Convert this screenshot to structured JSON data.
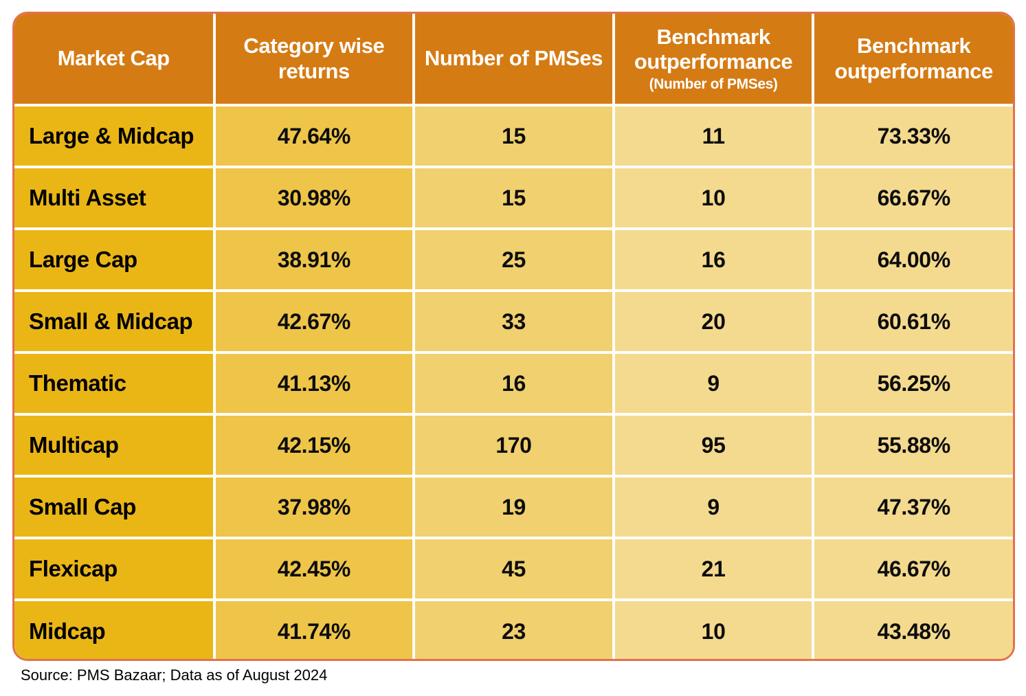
{
  "colors": {
    "header_bg": "#d57b14",
    "col1_bg": "#eab616",
    "col2_bg": "#eec549",
    "col3_bg": "#f0d06f",
    "col45_bg": "#f4da8e",
    "outer_border": "#e2714d",
    "grid_line": "#ffffff",
    "header_text": "#ffffff",
    "cell_text": "#0d0d0d"
  },
  "table": {
    "headers": [
      {
        "label": "Market Cap",
        "sub": ""
      },
      {
        "label": "Category wise returns",
        "sub": ""
      },
      {
        "label": "Number of PMSes",
        "sub": ""
      },
      {
        "label": "Benchmark outperformance",
        "sub": "(Number of PMSes)"
      },
      {
        "label": "Benchmark outperformance",
        "sub": ""
      }
    ],
    "rows": [
      {
        "market_cap": "Large & Midcap",
        "category_returns": "47.64%",
        "num_pmses": "15",
        "outperf_count": "11",
        "outperf_pct": "73.33%"
      },
      {
        "market_cap": "Multi Asset",
        "category_returns": "30.98%",
        "num_pmses": "15",
        "outperf_count": "10",
        "outperf_pct": "66.67%"
      },
      {
        "market_cap": "Large Cap",
        "category_returns": "38.91%",
        "num_pmses": "25",
        "outperf_count": "16",
        "outperf_pct": "64.00%"
      },
      {
        "market_cap": "Small & Midcap",
        "category_returns": "42.67%",
        "num_pmses": "33",
        "outperf_count": "20",
        "outperf_pct": "60.61%"
      },
      {
        "market_cap": "Thematic",
        "category_returns": "41.13%",
        "num_pmses": "16",
        "outperf_count": "9",
        "outperf_pct": "56.25%"
      },
      {
        "market_cap": "Multicap",
        "category_returns": "42.15%",
        "num_pmses": "170",
        "outperf_count": "95",
        "outperf_pct": "55.88%"
      },
      {
        "market_cap": "Small Cap",
        "category_returns": "37.98%",
        "num_pmses": "19",
        "outperf_count": "9",
        "outperf_pct": "47.37%"
      },
      {
        "market_cap": "Flexicap",
        "category_returns": "42.45%",
        "num_pmses": "45",
        "outperf_count": "21",
        "outperf_pct": "46.67%"
      },
      {
        "market_cap": "Midcap",
        "category_returns": "41.74%",
        "num_pmses": "23",
        "outperf_count": "10",
        "outperf_pct": "43.48%"
      }
    ]
  },
  "footer": {
    "source": "Source: PMS Bazaar; Data as of August 2024"
  },
  "chart_data": {
    "type": "table",
    "title": "",
    "columns": [
      "Market Cap",
      "Category wise returns",
      "Number of PMSes",
      "Benchmark outperformance (Number of PMSes)",
      "Benchmark outperformance"
    ],
    "rows": [
      [
        "Large & Midcap",
        "47.64%",
        15,
        11,
        "73.33%"
      ],
      [
        "Multi Asset",
        "30.98%",
        15,
        10,
        "66.67%"
      ],
      [
        "Large Cap",
        "38.91%",
        25,
        16,
        "64.00%"
      ],
      [
        "Small & Midcap",
        "42.67%",
        33,
        20,
        "60.61%"
      ],
      [
        "Thematic",
        "41.13%",
        16,
        9,
        "56.25%"
      ],
      [
        "Multicap",
        "42.15%",
        170,
        95,
        "55.88%"
      ],
      [
        "Small Cap",
        "37.98%",
        19,
        9,
        "47.37%"
      ],
      [
        "Flexicap",
        "42.45%",
        45,
        21,
        "46.67%"
      ],
      [
        "Midcap",
        "41.74%",
        23,
        10,
        "43.48%"
      ]
    ],
    "source": "Source: PMS Bazaar; Data as of August 2024"
  }
}
